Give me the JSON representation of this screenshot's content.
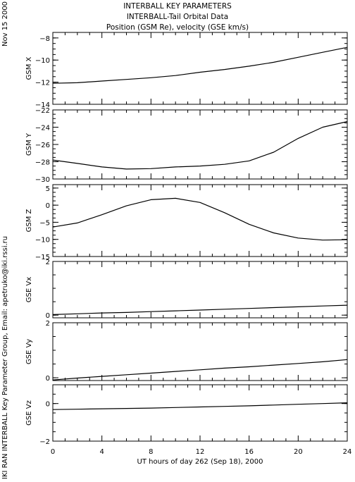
{
  "header": {
    "title": "INTERBALL KEY PARAMETERS",
    "subtitle": "INTERBALL-Tail Orbital Data",
    "subtitle2": "Position (GSM Re), velocity (GSE km/s)"
  },
  "side": {
    "date": "Nov 15 2000",
    "credit": "IKI RAN INTERBALL Key Parameter Group, Email: apetruko@iki.rssi.ru"
  },
  "chart_data": {
    "type": "line",
    "xlabel": "UT hours of day 262 (Sep 18), 2000",
    "xlim": [
      0,
      24
    ],
    "xticks": [
      0,
      4,
      8,
      12,
      16,
      20,
      24
    ],
    "x": [
      0,
      2,
      4,
      6,
      8,
      10,
      12,
      14,
      16,
      18,
      20,
      22,
      24
    ],
    "panels": [
      {
        "ylabel": "GSM X",
        "ylim": [
          -14,
          -7.5
        ],
        "yticks": [
          -14,
          -12,
          -10,
          -8
        ],
        "values": [
          -12.1,
          -12.05,
          -11.9,
          -11.75,
          -11.6,
          -11.4,
          -11.1,
          -10.85,
          -10.55,
          -10.2,
          -9.75,
          -9.3,
          -8.85
        ]
      },
      {
        "ylabel": "GSM Y",
        "ylim": [
          -30,
          -22
        ],
        "yticks": [
          -30,
          -28,
          -26,
          -24,
          -22
        ],
        "values": [
          -27.8,
          -28.2,
          -28.6,
          -28.85,
          -28.8,
          -28.6,
          -28.5,
          -28.3,
          -27.9,
          -26.9,
          -25.3,
          -24.0,
          -23.35
        ]
      },
      {
        "ylabel": "GSM Z",
        "ylim": [
          -15,
          6
        ],
        "yticks": [
          -15,
          -10,
          -5,
          0,
          5
        ],
        "values": [
          -6.4,
          -5.2,
          -2.8,
          -0.2,
          1.6,
          2.0,
          0.8,
          -2.2,
          -5.6,
          -8.1,
          -9.6,
          -10.2,
          -10.1
        ]
      },
      {
        "ylabel": "GSE Vx",
        "ylim": [
          -0.1,
          2
        ],
        "yticks": [
          0,
          2
        ],
        "values": [
          0.02,
          0.05,
          0.08,
          0.1,
          0.13,
          0.16,
          0.19,
          0.22,
          0.25,
          0.28,
          0.31,
          0.34,
          0.37
        ]
      },
      {
        "ylabel": "GSE Vy",
        "ylim": [
          -0.1,
          2
        ],
        "yticks": [
          0,
          2
        ],
        "values": [
          -0.08,
          -0.01,
          0.05,
          0.11,
          0.17,
          0.23,
          0.29,
          0.35,
          0.4,
          0.46,
          0.52,
          0.58,
          0.66
        ]
      },
      {
        "ylabel": "GSE Vz",
        "ylim": [
          -2,
          1
        ],
        "yticks": [
          -2,
          0
        ],
        "values": [
          -0.32,
          -0.3,
          -0.28,
          -0.26,
          -0.24,
          -0.21,
          -0.18,
          -0.15,
          -0.12,
          -0.08,
          -0.04,
          0.0,
          0.04
        ]
      }
    ]
  }
}
